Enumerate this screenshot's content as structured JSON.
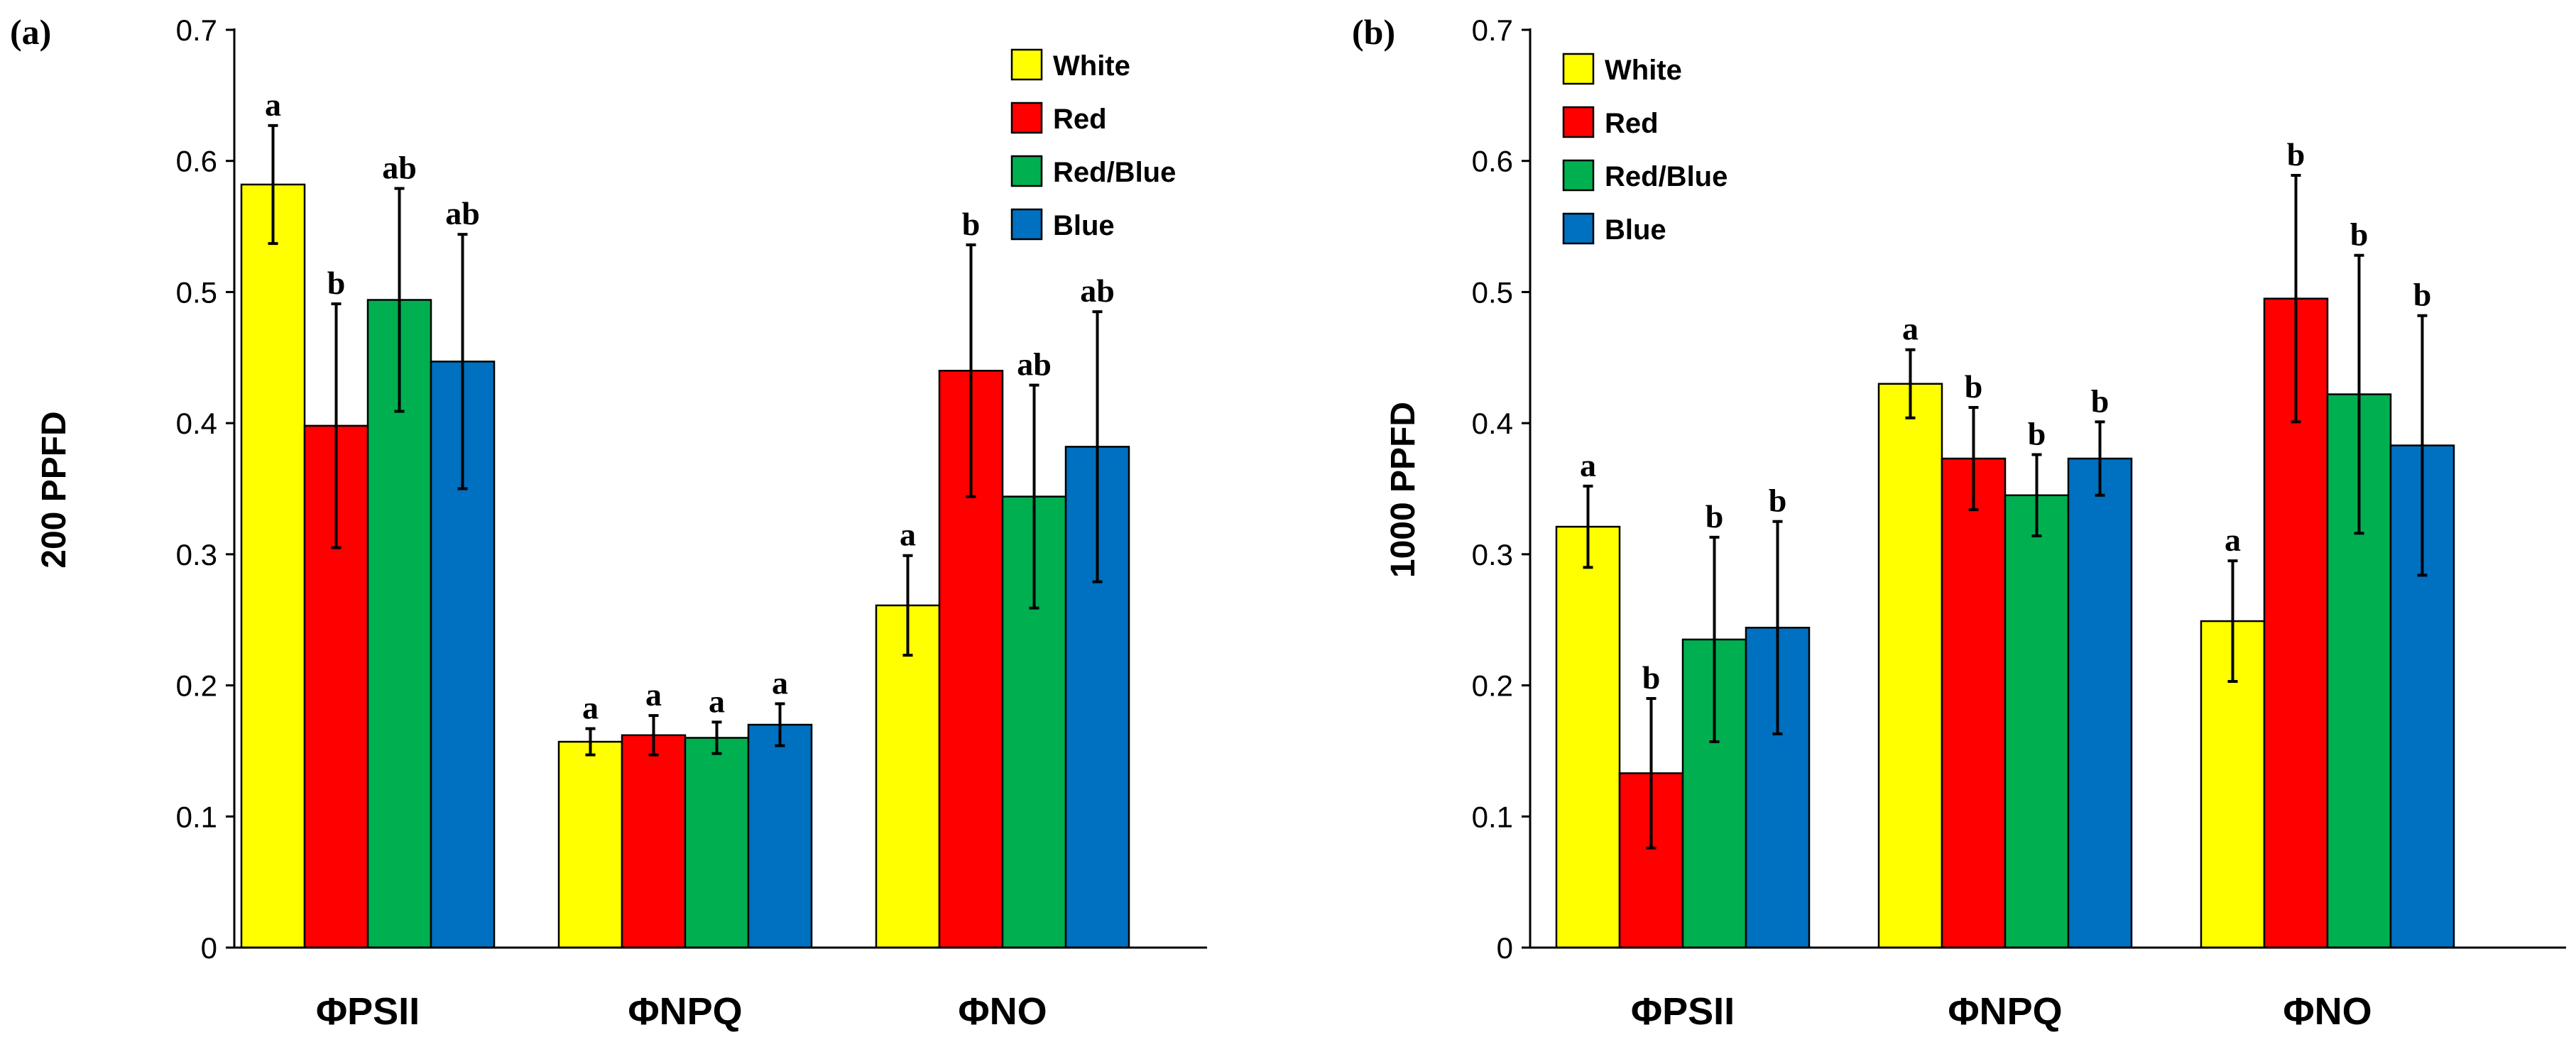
{
  "chart_data": [
    {
      "type": "bar",
      "panel_label": "(a)",
      "ylabel": "200 PPFD",
      "ylim": [
        0,
        0.7
      ],
      "yticks": [
        "0",
        "0.1",
        "0.2",
        "0.3",
        "0.4",
        "0.5",
        "0.6",
        "0.7"
      ],
      "legend_position": "top-right",
      "categories": [
        "ΦPSII",
        "ΦNPQ",
        "ΦNO"
      ],
      "series": [
        {
          "name": "White",
          "color": "#ffff00",
          "values": [
            0.582,
            0.157,
            0.261
          ],
          "errors": [
            0.045,
            0.01,
            0.038
          ],
          "labels": [
            "a",
            "a",
            "a"
          ]
        },
        {
          "name": "Red",
          "color": "#ff0000",
          "values": [
            0.398,
            0.162,
            0.44
          ],
          "errors": [
            0.093,
            0.015,
            0.096
          ],
          "labels": [
            "b",
            "a",
            "b"
          ]
        },
        {
          "name": "Red/Blue",
          "color": "#00b050",
          "values": [
            0.494,
            0.16,
            0.344
          ],
          "errors": [
            0.085,
            0.012,
            0.085
          ],
          "labels": [
            "ab",
            "a",
            "ab"
          ]
        },
        {
          "name": "Blue",
          "color": "#0070c0",
          "values": [
            0.447,
            0.17,
            0.382
          ],
          "errors": [
            0.097,
            0.016,
            0.103
          ],
          "labels": [
            "ab",
            "a",
            "ab"
          ]
        }
      ]
    },
    {
      "type": "bar",
      "panel_label": "(b)",
      "ylabel": "1000 PPFD",
      "ylim": [
        0,
        0.7
      ],
      "yticks": [
        "0",
        "0.1",
        "0.2",
        "0.3",
        "0.4",
        "0.5",
        "0.6",
        "0.7"
      ],
      "legend_position": "top-left",
      "categories": [
        "ΦPSII",
        "ΦNPQ",
        "ΦNO"
      ],
      "series": [
        {
          "name": "White",
          "color": "#ffff00",
          "values": [
            0.321,
            0.43,
            0.249
          ],
          "errors": [
            0.031,
            0.026,
            0.046
          ],
          "labels": [
            "a",
            "a",
            "a"
          ]
        },
        {
          "name": "Red",
          "color": "#ff0000",
          "values": [
            0.133,
            0.373,
            0.495
          ],
          "errors": [
            0.057,
            0.039,
            0.094
          ],
          "labels": [
            "b",
            "b",
            "b"
          ]
        },
        {
          "name": "Red/Blue",
          "color": "#00b050",
          "values": [
            0.235,
            0.345,
            0.422
          ],
          "errors": [
            0.078,
            0.031,
            0.106
          ],
          "labels": [
            "b",
            "b",
            "b"
          ]
        },
        {
          "name": "Blue",
          "color": "#0070c0",
          "values": [
            0.244,
            0.373,
            0.383
          ],
          "errors": [
            0.081,
            0.028,
            0.099
          ],
          "labels": [
            "b",
            "b",
            "b"
          ]
        }
      ]
    }
  ]
}
